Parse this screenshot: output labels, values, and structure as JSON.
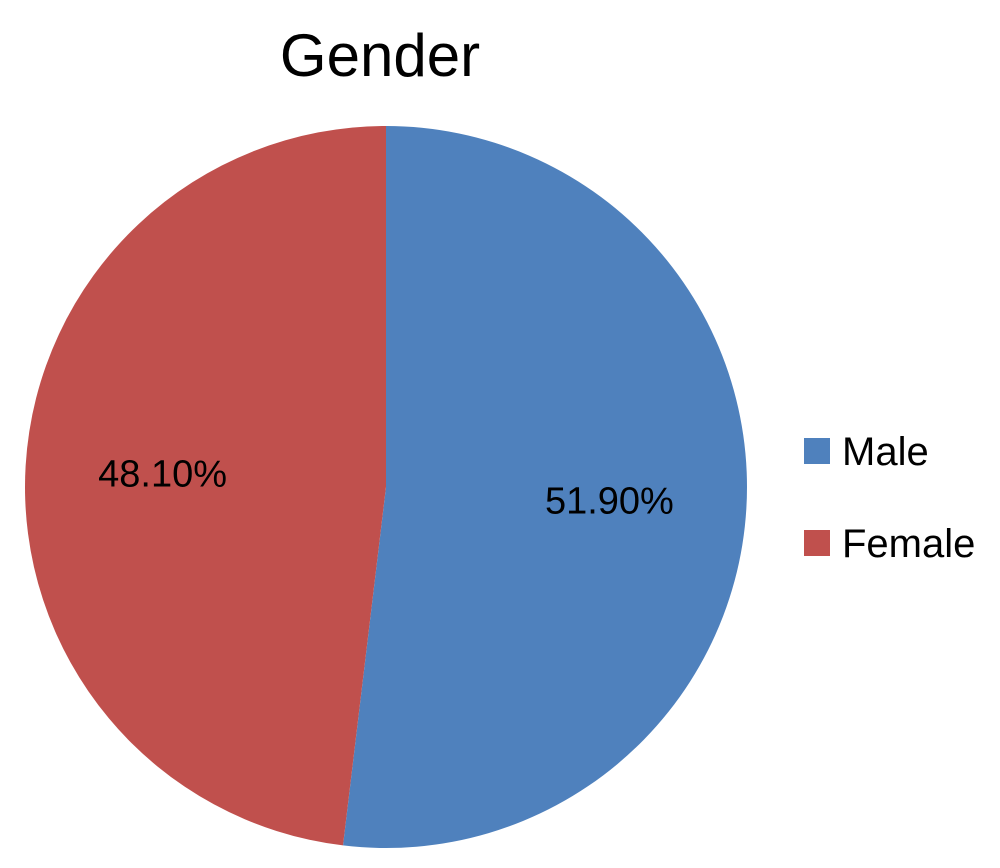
{
  "chart_data": {
    "type": "pie",
    "title": "Gender",
    "legend_position": "right",
    "slices": [
      {
        "label": "Male",
        "value": 51.9,
        "display": "51.90%",
        "color": "#4F81BD"
      },
      {
        "label": "Female",
        "value": 48.1,
        "display": "48.10%",
        "color": "#C0504D"
      }
    ]
  }
}
